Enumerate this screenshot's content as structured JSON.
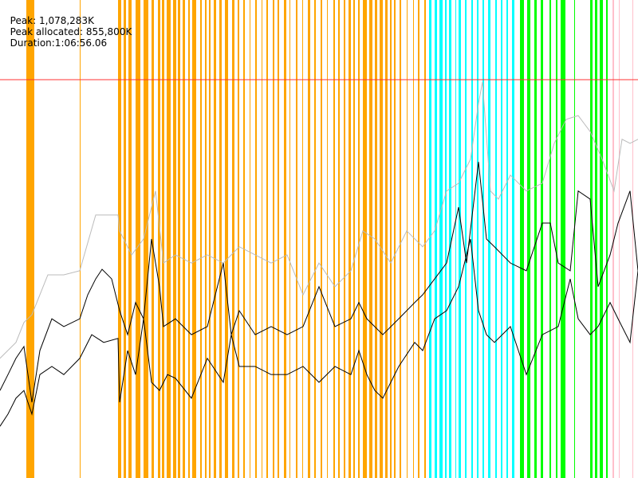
{
  "header": {
    "peak": "Peak: 1,078,283K",
    "peak_allocated": "Peak allocated: 855,800K",
    "duration": "Duration:1:06:56.06"
  },
  "chart_data": {
    "type": "line",
    "xlim": [
      0,
      4000
    ],
    "ylim": [
      0,
      1294000
    ],
    "peak_line": {
      "value": 1078283,
      "color": "#ff3333"
    },
    "bands": [
      {
        "color": "#ffa500",
        "x": [
          [
            165,
            215
          ],
          [
            500,
            505
          ],
          [
            740,
            760
          ],
          [
            775,
            790
          ],
          [
            805,
            825
          ],
          [
            850,
            880
          ],
          [
            900,
            930
          ],
          [
            950,
            965
          ],
          [
            990,
            1005
          ],
          [
            1015,
            1030
          ],
          [
            1045,
            1070
          ],
          [
            1085,
            1105
          ],
          [
            1115,
            1130
          ],
          [
            1145,
            1160
          ],
          [
            1180,
            1190
          ],
          [
            1205,
            1230
          ],
          [
            1255,
            1265
          ],
          [
            1285,
            1295
          ],
          [
            1310,
            1320
          ],
          [
            1340,
            1355
          ],
          [
            1375,
            1390
          ],
          [
            1410,
            1430
          ],
          [
            1455,
            1470
          ],
          [
            1490,
            1500
          ],
          [
            1525,
            1535
          ],
          [
            1565,
            1570
          ],
          [
            1600,
            1610
          ],
          [
            1640,
            1645
          ],
          [
            1670,
            1680
          ],
          [
            1710,
            1720
          ],
          [
            1740,
            1750
          ],
          [
            1780,
            1795
          ],
          [
            1815,
            1820
          ],
          [
            1855,
            1865
          ],
          [
            1895,
            1900
          ],
          [
            1930,
            1945
          ],
          [
            1970,
            1980
          ],
          [
            2010,
            2020
          ],
          [
            2050,
            2055
          ],
          [
            2090,
            2100
          ],
          [
            2120,
            2130
          ],
          [
            2155,
            2165
          ],
          [
            2185,
            2200
          ],
          [
            2215,
            2225
          ],
          [
            2245,
            2255
          ],
          [
            2275,
            2300
          ],
          [
            2315,
            2335
          ],
          [
            2350,
            2365
          ],
          [
            2380,
            2400
          ],
          [
            2415,
            2430
          ],
          [
            2445,
            2455
          ],
          [
            2470,
            2480
          ],
          [
            2505,
            2515
          ],
          [
            2550,
            2555
          ],
          [
            2590,
            2595
          ],
          [
            2620,
            2630
          ],
          [
            2660,
            2670
          ]
        ]
      },
      {
        "color": "#00ffff",
        "x": [
          [
            2690,
            2705
          ],
          [
            2725,
            2740
          ],
          [
            2755,
            2775
          ],
          [
            2790,
            2800
          ],
          [
            2815,
            2830
          ],
          [
            2855,
            2860
          ],
          [
            2875,
            2890
          ],
          [
            2915,
            2925
          ],
          [
            2955,
            2965
          ],
          [
            2990,
            3000
          ],
          [
            3025,
            3035
          ],
          [
            3060,
            3075
          ],
          [
            3105,
            3115
          ],
          [
            3140,
            3150
          ],
          [
            3175,
            3185
          ],
          [
            3210,
            3225
          ]
        ]
      },
      {
        "color": "#00ff00",
        "x": [
          [
            3260,
            3285
          ],
          [
            3305,
            3325
          ],
          [
            3350,
            3365
          ],
          [
            3390,
            3405
          ],
          [
            3445,
            3455
          ],
          [
            3485,
            3495
          ],
          [
            3515,
            3545
          ],
          [
            3600,
            3605
          ],
          [
            3700,
            3715
          ],
          [
            3730,
            3745
          ],
          [
            3760,
            3780
          ],
          [
            3800,
            3810
          ]
        ]
      },
      {
        "color": "#ffc0cb",
        "x": [
          [
            3840,
            3850
          ],
          [
            3880,
            3885
          ],
          [
            3965,
            3970
          ]
        ]
      }
    ],
    "series": [
      {
        "color": "#bbbbbb",
        "x": [
          0,
          100,
          150,
          200,
          300,
          400,
          500,
          600,
          740,
          750,
          825,
          900,
          975,
          1025,
          1100,
          1200,
          1300,
          1400,
          1500,
          1600,
          1700,
          1800,
          1900,
          2000,
          2100,
          2200,
          2275,
          2350,
          2450,
          2550,
          2650,
          2725,
          2800,
          2875,
          2950,
          3000,
          3025,
          3075,
          3125,
          3200,
          3300,
          3400,
          3475,
          3550,
          3625,
          3700,
          3775,
          3850,
          3900,
          3950,
          4000
        ],
        "values": [
          324000,
          367000,
          421000,
          442000,
          550000,
          550000,
          561000,
          712000,
          712000,
          669000,
          604000,
          647000,
          777000,
          582000,
          604000,
          582000,
          604000,
          582000,
          626000,
          604000,
          582000,
          604000,
          496000,
          582000,
          518000,
          561000,
          669000,
          647000,
          582000,
          669000,
          626000,
          669000,
          777000,
          798000,
          863000,
          1014000,
          1072000,
          777000,
          755000,
          820000,
          777000,
          798000,
          906000,
          971000,
          981000,
          938000,
          863000,
          777000,
          917000,
          906000,
          917000
        ]
      },
      {
        "color": "#000000",
        "x": [
          0,
          50,
          100,
          150,
          200,
          250,
          325,
          400,
          500,
          550,
          600,
          640,
          700,
          750,
          800,
          850,
          900,
          950,
          1000,
          1025,
          1100,
          1200,
          1300,
          1400,
          1450,
          1500,
          1600,
          1700,
          1800,
          1900,
          2000,
          2100,
          2200,
          2250,
          2300,
          2400,
          2500,
          2600,
          2650,
          2725,
          2800,
          2875,
          2925,
          3000,
          3050,
          3100,
          3200,
          3300,
          3400,
          3450,
          3500,
          3575,
          3625,
          3700,
          3750,
          3825,
          3875,
          3950,
          4000
        ],
        "values": [
          237000,
          280000,
          324000,
          356000,
          205000,
          345000,
          431000,
          410000,
          431000,
          496000,
          539000,
          565000,
          539000,
          453000,
          388000,
          475000,
          431000,
          647000,
          518000,
          410000,
          431000,
          388000,
          410000,
          582000,
          388000,
          453000,
          388000,
          410000,
          388000,
          410000,
          518000,
          410000,
          431000,
          475000,
          431000,
          388000,
          431000,
          475000,
          496000,
          539000,
          582000,
          733000,
          582000,
          855800,
          647000,
          626000,
          582000,
          561000,
          690000,
          690000,
          582000,
          561000,
          777000,
          755000,
          518000,
          604000,
          690000,
          777000,
          561000
        ]
      },
      {
        "color": "#000000",
        "x": [
          0,
          50,
          100,
          150,
          200,
          250,
          325,
          400,
          500,
          575,
          650,
          740,
          750,
          800,
          850,
          900,
          950,
          1000,
          1050,
          1100,
          1200,
          1300,
          1400,
          1450,
          1500,
          1600,
          1700,
          1800,
          1900,
          2000,
          2100,
          2200,
          2250,
          2300,
          2350,
          2400,
          2500,
          2600,
          2650,
          2725,
          2800,
          2875,
          2950,
          3000,
          3050,
          3100,
          3200,
          3300,
          3400,
          3500,
          3575,
          3625,
          3700,
          3750,
          3825,
          3875,
          3950,
          4000
        ],
        "values": [
          140000,
          173000,
          216000,
          237000,
          173000,
          280000,
          302000,
          280000,
          324000,
          388000,
          367000,
          378000,
          205000,
          345000,
          280000,
          431000,
          259000,
          237000,
          280000,
          270000,
          216000,
          324000,
          259000,
          388000,
          302000,
          302000,
          280000,
          280000,
          302000,
          259000,
          302000,
          280000,
          345000,
          280000,
          237000,
          216000,
          302000,
          367000,
          345000,
          431000,
          453000,
          518000,
          647000,
          453000,
          388000,
          367000,
          410000,
          280000,
          388000,
          410000,
          539000,
          431000,
          388000,
          410000,
          475000,
          431000,
          367000,
          561000
        ]
      }
    ]
  }
}
